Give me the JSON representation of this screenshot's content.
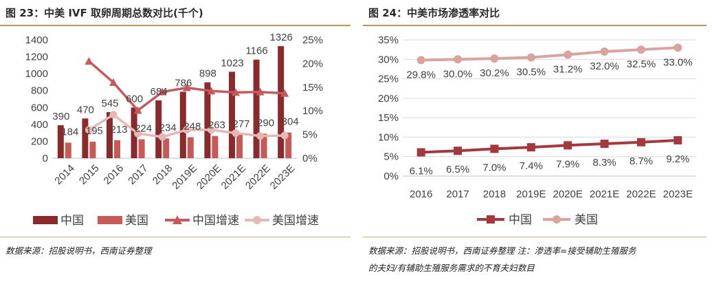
{
  "left_chart": {
    "title": "图 23：中美 IVF 取卵周期总数对比(千个)",
    "source": "数据来源：招股说明书，西南证券整理"
  },
  "right_chart": {
    "title": "图 24：中美市场渗透率对比",
    "source_line1": "数据来源：招股说明书，西南证券整理  注：渗透率=接受辅助生殖服务",
    "source_line2": "的夫妇/有辅助生殖服务需求的不育夫妇数目"
  },
  "colors": {
    "china_bar": "#8b2a2d",
    "us_bar": "#c75a57",
    "china_growth": "#c6595c",
    "us_growth": "#e5b8b4",
    "china_penetration": "#a3393c",
    "us_penetration": "#d9a3a0",
    "gold": "#b3985a"
  },
  "chart_data": [
    {
      "type": "bar",
      "categories": [
        "2014",
        "2015",
        "2016",
        "2017",
        "2018",
        "2019E",
        "2020E",
        "2021E",
        "2022E",
        "2023E"
      ],
      "series": [
        {
          "name": "中国",
          "kind": "bar",
          "axis": "left",
          "values": [
            390,
            470,
            545,
            600,
            684,
            786,
            898,
            1023,
            1166,
            1326
          ],
          "labels": [
            "390",
            "470",
            "545",
            "600",
            "684",
            "786",
            "898",
            "1023",
            "1166",
            "1326"
          ]
        },
        {
          "name": "美国",
          "kind": "bar",
          "axis": "left",
          "values": [
            184,
            195,
            213,
            224,
            234,
            248,
            263,
            277,
            290,
            304
          ],
          "labels": [
            "184",
            "195",
            "213",
            "224",
            "234",
            "248",
            "263",
            "277",
            "290",
            "304"
          ]
        },
        {
          "name": "中国增速",
          "kind": "line",
          "axis": "right",
          "values": [
            null,
            20.5,
            16.0,
            10.1,
            14.0,
            14.9,
            14.2,
            13.9,
            14.0,
            13.7
          ]
        },
        {
          "name": "美国增速",
          "kind": "line",
          "axis": "right",
          "values": [
            null,
            6.0,
            9.2,
            5.2,
            4.5,
            6.0,
            6.0,
            5.3,
            4.7,
            4.8
          ]
        }
      ],
      "yticks": [
        "0",
        "200",
        "400",
        "600",
        "800",
        "1000",
        "1200",
        "1400"
      ],
      "ylim": [
        0,
        1400
      ],
      "y2ticks": [
        "0%",
        "5%",
        "10%",
        "15%",
        "20%",
        "25%"
      ],
      "y2lim": [
        0,
        25
      ],
      "legend": "bottom"
    },
    {
      "type": "line",
      "categories": [
        "2016",
        "2017",
        "2018",
        "2019E",
        "2020E",
        "2021E",
        "2022E",
        "2023E"
      ],
      "series": [
        {
          "name": "中国",
          "values": [
            6.1,
            6.5,
            7.0,
            7.4,
            7.9,
            8.3,
            8.7,
            9.2
          ],
          "labels": [
            "6.1%",
            "6.5%",
            "7.0%",
            "7.4%",
            "7.9%",
            "8.3%",
            "8.7%",
            "9.2%"
          ]
        },
        {
          "name": "美国",
          "values": [
            29.8,
            30.0,
            30.2,
            30.5,
            31.2,
            32.0,
            32.5,
            33.0
          ],
          "labels": [
            "29.8%",
            "30.0%",
            "30.2%",
            "30.5%",
            "31.2%",
            "32.0%",
            "32.5%",
            "33.0%"
          ]
        }
      ],
      "yticks": [
        "0%",
        "5%",
        "10%",
        "15%",
        "20%",
        "25%",
        "30%",
        "35%"
      ],
      "ylim": [
        0,
        35
      ],
      "grid": true,
      "legend": "bottom"
    }
  ]
}
